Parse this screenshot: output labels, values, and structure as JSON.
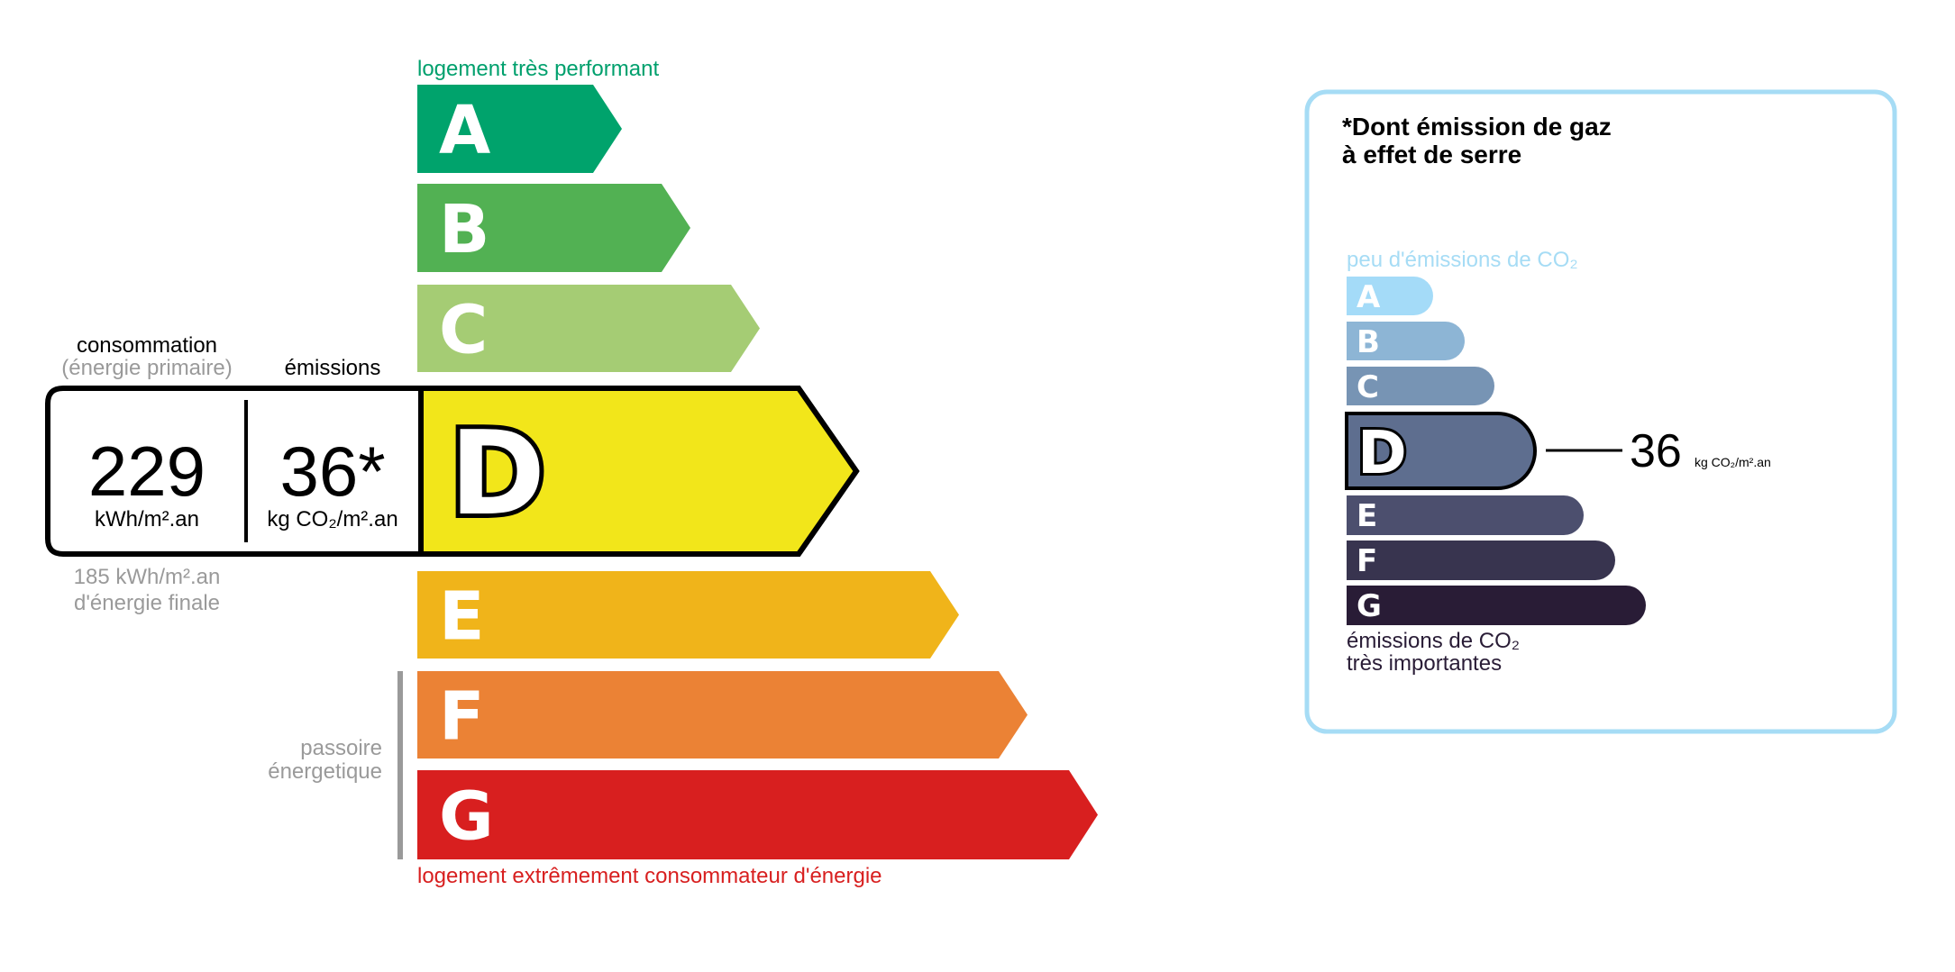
{
  "energy": {
    "top_label": "logement très performant",
    "bottom_label": "logement extrêmement consommateur d'énergie",
    "passoire_line1": "passoire",
    "passoire_line2": "énergetique",
    "classes": [
      "A",
      "B",
      "C",
      "D",
      "E",
      "F",
      "G"
    ],
    "colors": [
      "#00a36c",
      "#52b153",
      "#a5cc74",
      "#f2e61a",
      "#f0b41a",
      "#eb8235",
      "#d81f1f"
    ],
    "current_class": "D",
    "consumption_label": "consommation",
    "consumption_sublabel": "(énergie primaire)",
    "emissions_label": "émissions",
    "consumption_value": "229",
    "consumption_unit": "kWh/m².an",
    "emissions_value": "36*",
    "emissions_unit": "kg CO₂/m².an",
    "final_energy_line1": "185 kWh/m².an",
    "final_energy_line2": "d'énergie finale"
  },
  "ghg": {
    "title_line1": "*Dont émission de gaz",
    "title_line2": "à effet de serre",
    "top_label": "peu d'émissions de CO₂",
    "bottom_line1": "émissions de CO₂",
    "bottom_line2": "très importantes",
    "classes": [
      "A",
      "B",
      "C",
      "D",
      "E",
      "F",
      "G"
    ],
    "colors": [
      "#a4dbf8",
      "#8db5d5",
      "#7794b4",
      "#5e6e8f",
      "#4c4f6e",
      "#38344f",
      "#291c36"
    ],
    "current_class": "D",
    "value": "36",
    "unit": "kg CO₂/m².an",
    "border_color": "#a6dcf5"
  }
}
